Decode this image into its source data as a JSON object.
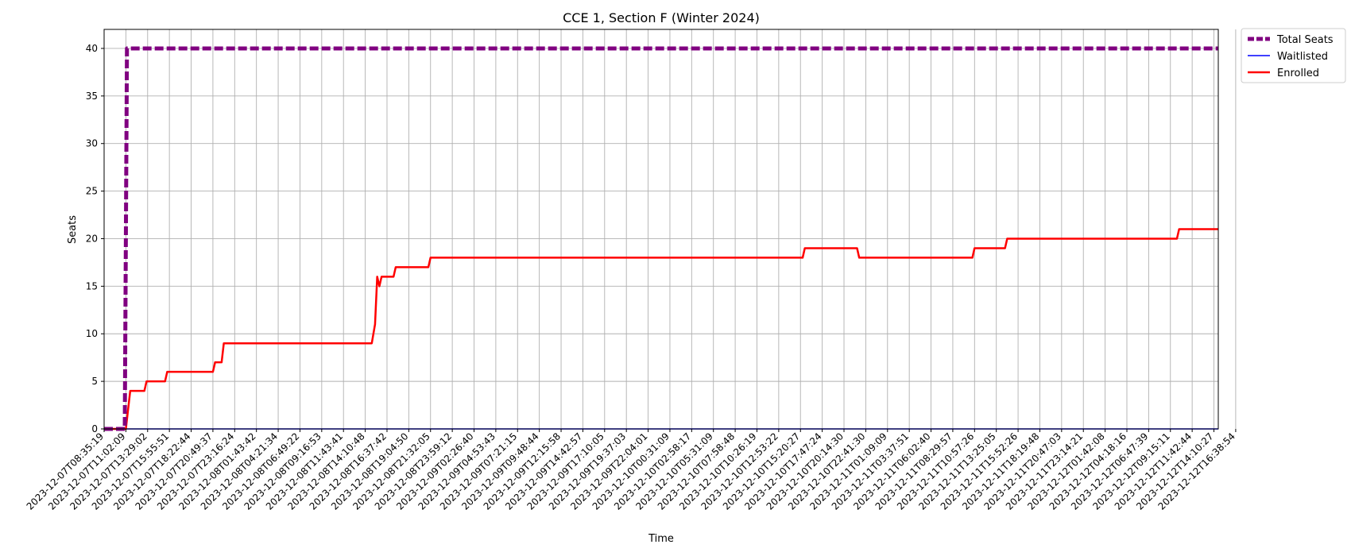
{
  "chart_data": {
    "type": "line",
    "title": "CCE 1, Section F (Winter 2024)",
    "xlabel": "Time",
    "ylabel": "Seats",
    "ylim": [
      0,
      42
    ],
    "yticks": [
      0,
      5,
      10,
      15,
      20,
      25,
      30,
      35,
      40
    ],
    "grid": true,
    "legend_position": "outside-top-right",
    "x_tick_labels": [
      "2023-12-07T08:35:19",
      "2023-12-07T11:02:09",
      "2023-12-07T13:29:02",
      "2023-12-07T15:55:51",
      "2023-12-07T18:22:44",
      "2023-12-07T20:49:37",
      "2023-12-07T23:16:24",
      "2023-12-08T01:43:42",
      "2023-12-08T04:21:34",
      "2023-12-08T06:49:22",
      "2023-12-08T09:16:53",
      "2023-12-08T11:43:41",
      "2023-12-08T14:10:48",
      "2023-12-08T16:37:42",
      "2023-12-08T19:04:50",
      "2023-12-08T21:32:05",
      "2023-12-08T23:59:12",
      "2023-12-09T02:26:40",
      "2023-12-09T04:53:43",
      "2023-12-09T07:21:15",
      "2023-12-09T09:48:44",
      "2023-12-09T12:15:58",
      "2023-12-09T14:42:57",
      "2023-12-09T17:10:05",
      "2023-12-09T19:37:03",
      "2023-12-09T22:04:01",
      "2023-12-10T00:31:09",
      "2023-12-10T02:58:17",
      "2023-12-10T05:31:09",
      "2023-12-10T07:58:48",
      "2023-12-10T10:26:19",
      "2023-12-10T12:53:22",
      "2023-12-10T15:20:27",
      "2023-12-10T17:47:24",
      "2023-12-10T20:14:30",
      "2023-12-10T22:41:30",
      "2023-12-11T01:09:09",
      "2023-12-11T03:37:51",
      "2023-12-11T06:02:40",
      "2023-12-11T08:29:57",
      "2023-12-11T10:57:26",
      "2023-12-11T13:25:05",
      "2023-12-11T15:52:26",
      "2023-12-11T18:19:48",
      "2023-12-11T20:47:03",
      "2023-12-11T23:14:21",
      "2023-12-12T01:42:08",
      "2023-12-12T04:18:16",
      "2023-12-12T06:47:39",
      "2023-12-12T09:15:11",
      "2023-12-12T11:42:44",
      "2023-12-12T14:10:27",
      "2023-12-12T16:38:54"
    ],
    "x_range_tick_index": [
      0,
      51.2
    ],
    "series": [
      {
        "name": "Total Seats",
        "color": "#800080",
        "style": "dashed",
        "x": [
          0,
          0.95,
          1.05,
          51.2
        ],
        "y": [
          0,
          0,
          40,
          40
        ]
      },
      {
        "name": "Waitlisted",
        "color": "#0000ff",
        "style": "solid",
        "x": [
          0,
          51.2
        ],
        "y": [
          0,
          0
        ]
      },
      {
        "name": "Enrolled",
        "color": "#ff0000",
        "style": "solid",
        "x": [
          0,
          1.0,
          1.2,
          1.85,
          1.95,
          2.8,
          2.9,
          5.0,
          5.1,
          5.4,
          5.5,
          12.3,
          12.45,
          12.55,
          12.65,
          12.75,
          13.3,
          13.4,
          14.9,
          15.0,
          32.1,
          32.2,
          34.6,
          34.7,
          39.9,
          40.0,
          41.4,
          41.5,
          49.3,
          49.4,
          51.2
        ],
        "y": [
          0,
          0,
          4,
          4,
          5,
          5,
          6,
          6,
          7,
          7,
          9,
          9,
          11,
          16,
          15,
          16,
          16,
          17,
          17,
          18,
          18,
          19,
          19,
          18,
          18,
          19,
          19,
          20,
          20,
          21,
          21
        ]
      }
    ]
  }
}
